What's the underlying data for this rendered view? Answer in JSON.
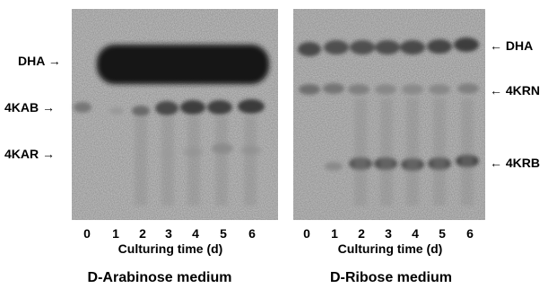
{
  "left_panel": {
    "lane_labels": [
      "0",
      "1",
      "2",
      "3",
      "4",
      "5",
      "6"
    ],
    "axis_title": "Culturing time (d)",
    "caption": "D-Arabinose medium",
    "band_labels": {
      "dha": "DHA →",
      "kab": "4KAB →",
      "kar": "4KAR →"
    }
  },
  "right_panel": {
    "lane_labels": [
      "0",
      "1",
      "2",
      "3",
      "4",
      "5",
      "6"
    ],
    "axis_title": "Culturing time (d)",
    "caption": "D-Ribose medium",
    "band_labels": {
      "dha": "← DHA",
      "krn": "← 4KRN",
      "krb": "← 4KRB"
    }
  },
  "colors": {
    "gel_background": "#c9c9c9",
    "band_dark": "#1a1a1a",
    "band_mid": "#555555"
  }
}
